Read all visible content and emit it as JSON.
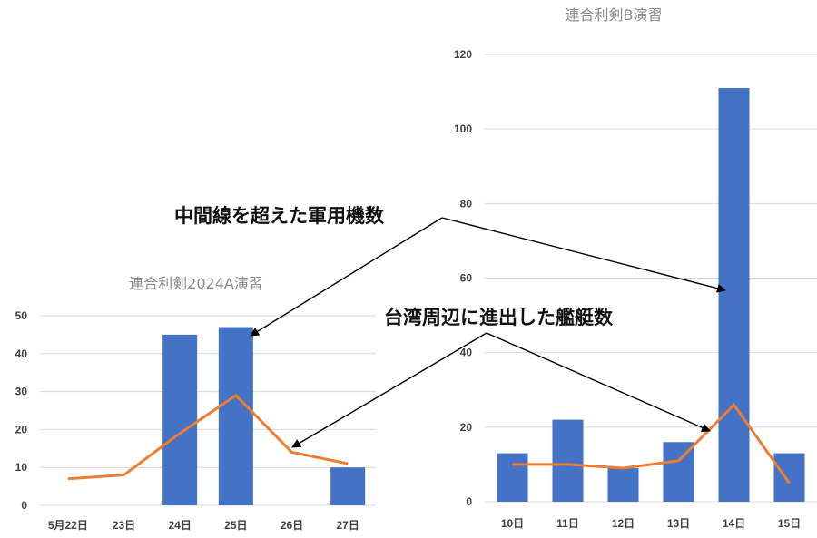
{
  "annotations": {
    "aircraft": "中間線を超えた軍用機数",
    "ships": "台湾周辺に進出した艦艇数"
  },
  "colors": {
    "bar": "#4472C4",
    "line": "#ED7D31"
  },
  "chart_data": [
    {
      "type": "bar",
      "title": "連合利剣2024A演習",
      "categories": [
        "5月22日",
        "23日",
        "24日",
        "25日",
        "26日",
        "27日"
      ],
      "ylim": [
        0,
        50
      ],
      "yticks": [
        "0",
        "10",
        "20",
        "30",
        "40",
        "50"
      ],
      "grid": true,
      "series": [
        {
          "kind": "bar",
          "values": [
            null,
            null,
            45,
            47,
            null,
            10
          ]
        },
        {
          "kind": "line",
          "values": [
            7,
            8,
            19,
            29,
            14,
            11
          ]
        }
      ]
    },
    {
      "type": "bar",
      "title": "連合利剣B演習",
      "categories": [
        "10日",
        "11日",
        "12日",
        "13日",
        "14日",
        "15日"
      ],
      "ylim": [
        0,
        120
      ],
      "yticks": [
        "0",
        "20",
        "40",
        "60",
        "80",
        "100",
        "120"
      ],
      "grid": true,
      "series": [
        {
          "kind": "bar",
          "values": [
            13,
            22,
            9,
            16,
            111,
            13
          ]
        },
        {
          "kind": "line",
          "values": [
            10,
            10,
            9,
            11,
            26,
            5
          ]
        }
      ]
    }
  ]
}
